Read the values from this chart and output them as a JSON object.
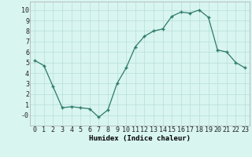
{
  "x": [
    0,
    1,
    2,
    3,
    4,
    5,
    6,
    7,
    8,
    9,
    10,
    11,
    12,
    13,
    14,
    15,
    16,
    17,
    18,
    19,
    20,
    21,
    22,
    23
  ],
  "y": [
    5.2,
    4.7,
    2.7,
    0.7,
    0.8,
    0.7,
    0.6,
    -0.2,
    0.5,
    3.0,
    4.5,
    6.5,
    7.5,
    8.0,
    8.2,
    9.4,
    9.8,
    9.7,
    10.0,
    9.3,
    6.2,
    6.0,
    5.0,
    4.5
  ],
  "line_color": "#2d7a6a",
  "marker_color": "#2d7a6a",
  "bg_color": "#d8f5f0",
  "grid_color": "#b8ddd8",
  "xlabel": "Humidex (Indice chaleur)",
  "ylabel": "",
  "xlim": [
    -0.5,
    23.5
  ],
  "ylim": [
    -1.0,
    10.8
  ],
  "yticks": [
    0,
    1,
    2,
    3,
    4,
    5,
    6,
    7,
    8,
    9,
    10
  ],
  "ytick_labels": [
    "-0",
    "1",
    "2",
    "3",
    "4",
    "5",
    "6",
    "7",
    "8",
    "9",
    "10"
  ],
  "xticks": [
    0,
    1,
    2,
    3,
    4,
    5,
    6,
    7,
    8,
    9,
    10,
    11,
    12,
    13,
    14,
    15,
    16,
    17,
    18,
    19,
    20,
    21,
    22,
    23
  ],
  "xlabel_fontsize": 6.5,
  "tick_fontsize": 6.0
}
